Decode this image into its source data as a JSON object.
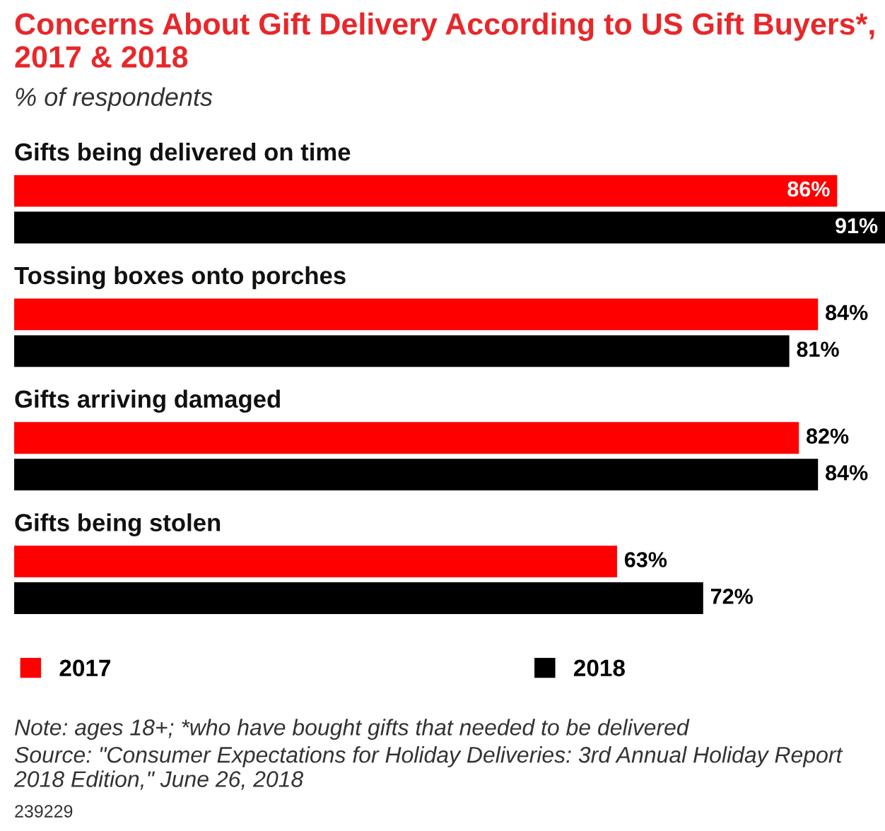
{
  "chart_data": {
    "type": "bar",
    "orientation": "horizontal",
    "title": "Concerns About Gift Delivery According to US Gift Buyers*, 2017 & 2018",
    "subtitle": "% of respondents",
    "categories": [
      "Gifts being delivered on time",
      "Tossing boxes onto porches",
      "Gifts arriving damaged",
      "Gifts being stolen"
    ],
    "series": [
      {
        "name": "2017",
        "color": "#ff0000",
        "values": [
          86,
          84,
          82,
          63
        ],
        "value_labels": [
          "86%",
          "84%",
          "82%",
          "63%"
        ]
      },
      {
        "name": "2018",
        "color": "#000000",
        "values": [
          91,
          81,
          84,
          72
        ],
        "value_labels": [
          "91%",
          "81%",
          "84%",
          "72%"
        ]
      }
    ],
    "legend": "bottom",
    "annotations": [
      "Note: ages 18+; *who have bought gifts that needed to be delivered",
      "Source: \"Consumer Expectations for Holiday Deliveries: 3rd Annual Holiday Report 2018 Edition,\" June 26, 2018",
      "239229"
    ]
  }
}
